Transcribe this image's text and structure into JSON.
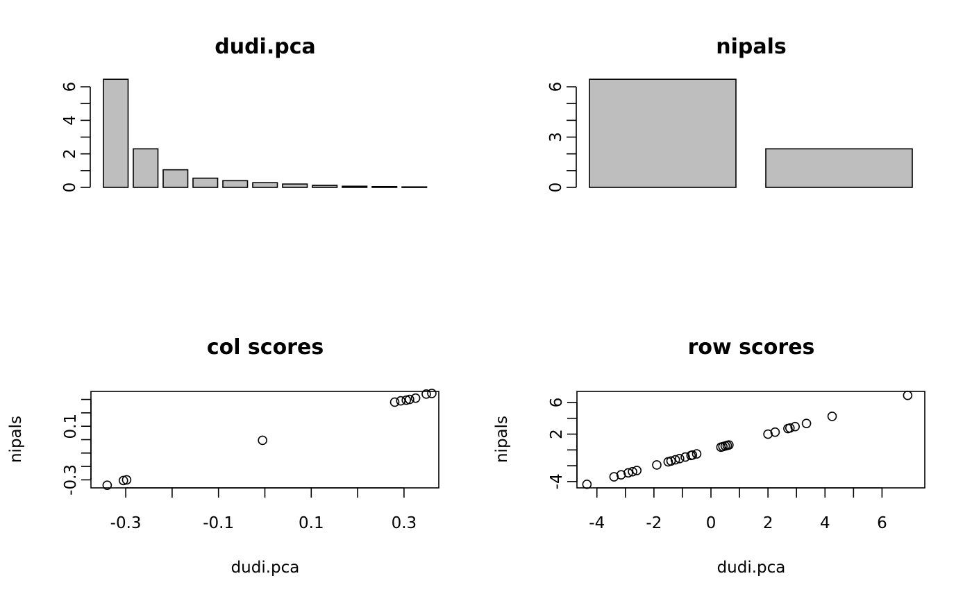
{
  "chart_data": [
    {
      "type": "bar",
      "title": "dudi.pca",
      "xlabel": "",
      "ylabel": "",
      "ylim": [
        0,
        6.5
      ],
      "yticks": [
        "0",
        "2",
        "4",
        "6"
      ],
      "values": [
        6.45,
        2.3,
        1.05,
        0.55,
        0.4,
        0.28,
        0.2,
        0.12,
        0.07,
        0.05,
        0.03
      ],
      "grid": false
    },
    {
      "type": "bar",
      "title": "nipals",
      "xlabel": "",
      "ylabel": "",
      "ylim": [
        0,
        6.5
      ],
      "yticks": [
        "0",
        "3",
        "6"
      ],
      "values": [
        6.45,
        2.3
      ],
      "grid": false
    },
    {
      "type": "scatter",
      "title": "col scores",
      "xlabel": "dudi.pca",
      "ylabel": "nipals",
      "xlim": [
        -0.375,
        0.375
      ],
      "ylim": [
        -0.36,
        0.36
      ],
      "xticks": [
        "-0.3",
        "-0.1",
        "0.1",
        "0.3"
      ],
      "yticks": [
        "-0.3",
        "0.1"
      ],
      "points": [
        {
          "x": -0.34,
          "y": -0.34
        },
        {
          "x": -0.305,
          "y": -0.305
        },
        {
          "x": -0.298,
          "y": -0.3
        },
        {
          "x": -0.005,
          "y": -0.005
        },
        {
          "x": 0.28,
          "y": 0.28
        },
        {
          "x": 0.293,
          "y": 0.29
        },
        {
          "x": 0.305,
          "y": 0.295
        },
        {
          "x": 0.312,
          "y": 0.3
        },
        {
          "x": 0.325,
          "y": 0.31
        },
        {
          "x": 0.348,
          "y": 0.34
        },
        {
          "x": 0.36,
          "y": 0.345
        }
      ],
      "grid": false
    },
    {
      "type": "scatter",
      "title": "row scores",
      "xlabel": "dudi.pca",
      "ylabel": "nipals",
      "xlim": [
        -4.7,
        7.5
      ],
      "ylim": [
        -4.8,
        7.4
      ],
      "xticks": [
        "-4",
        "-2",
        "0",
        "2",
        "4",
        "6"
      ],
      "yticks": [
        "-4",
        "2",
        "6"
      ],
      "points": [
        {
          "x": -4.35,
          "y": -4.35
        },
        {
          "x": -3.4,
          "y": -3.4
        },
        {
          "x": -3.15,
          "y": -3.15
        },
        {
          "x": -2.9,
          "y": -2.9
        },
        {
          "x": -2.75,
          "y": -2.75
        },
        {
          "x": -2.6,
          "y": -2.6
        },
        {
          "x": -1.9,
          "y": -1.9
        },
        {
          "x": -1.5,
          "y": -1.5
        },
        {
          "x": -1.4,
          "y": -1.4
        },
        {
          "x": -1.25,
          "y": -1.25
        },
        {
          "x": -1.1,
          "y": -1.1
        },
        {
          "x": -0.9,
          "y": -0.9
        },
        {
          "x": -0.7,
          "y": -0.7
        },
        {
          "x": -0.65,
          "y": -0.65
        },
        {
          "x": -0.5,
          "y": -0.5
        },
        {
          "x": 0.35,
          "y": 0.35
        },
        {
          "x": 0.42,
          "y": 0.42
        },
        {
          "x": 0.5,
          "y": 0.5
        },
        {
          "x": 0.57,
          "y": 0.57
        },
        {
          "x": 0.63,
          "y": 0.63
        },
        {
          "x": 2.0,
          "y": 2.0
        },
        {
          "x": 2.25,
          "y": 2.25
        },
        {
          "x": 2.7,
          "y": 2.7
        },
        {
          "x": 2.77,
          "y": 2.77
        },
        {
          "x": 2.95,
          "y": 2.95
        },
        {
          "x": 3.35,
          "y": 3.35
        },
        {
          "x": 4.25,
          "y": 4.25
        },
        {
          "x": 6.9,
          "y": 6.9
        }
      ],
      "grid": false
    }
  ]
}
